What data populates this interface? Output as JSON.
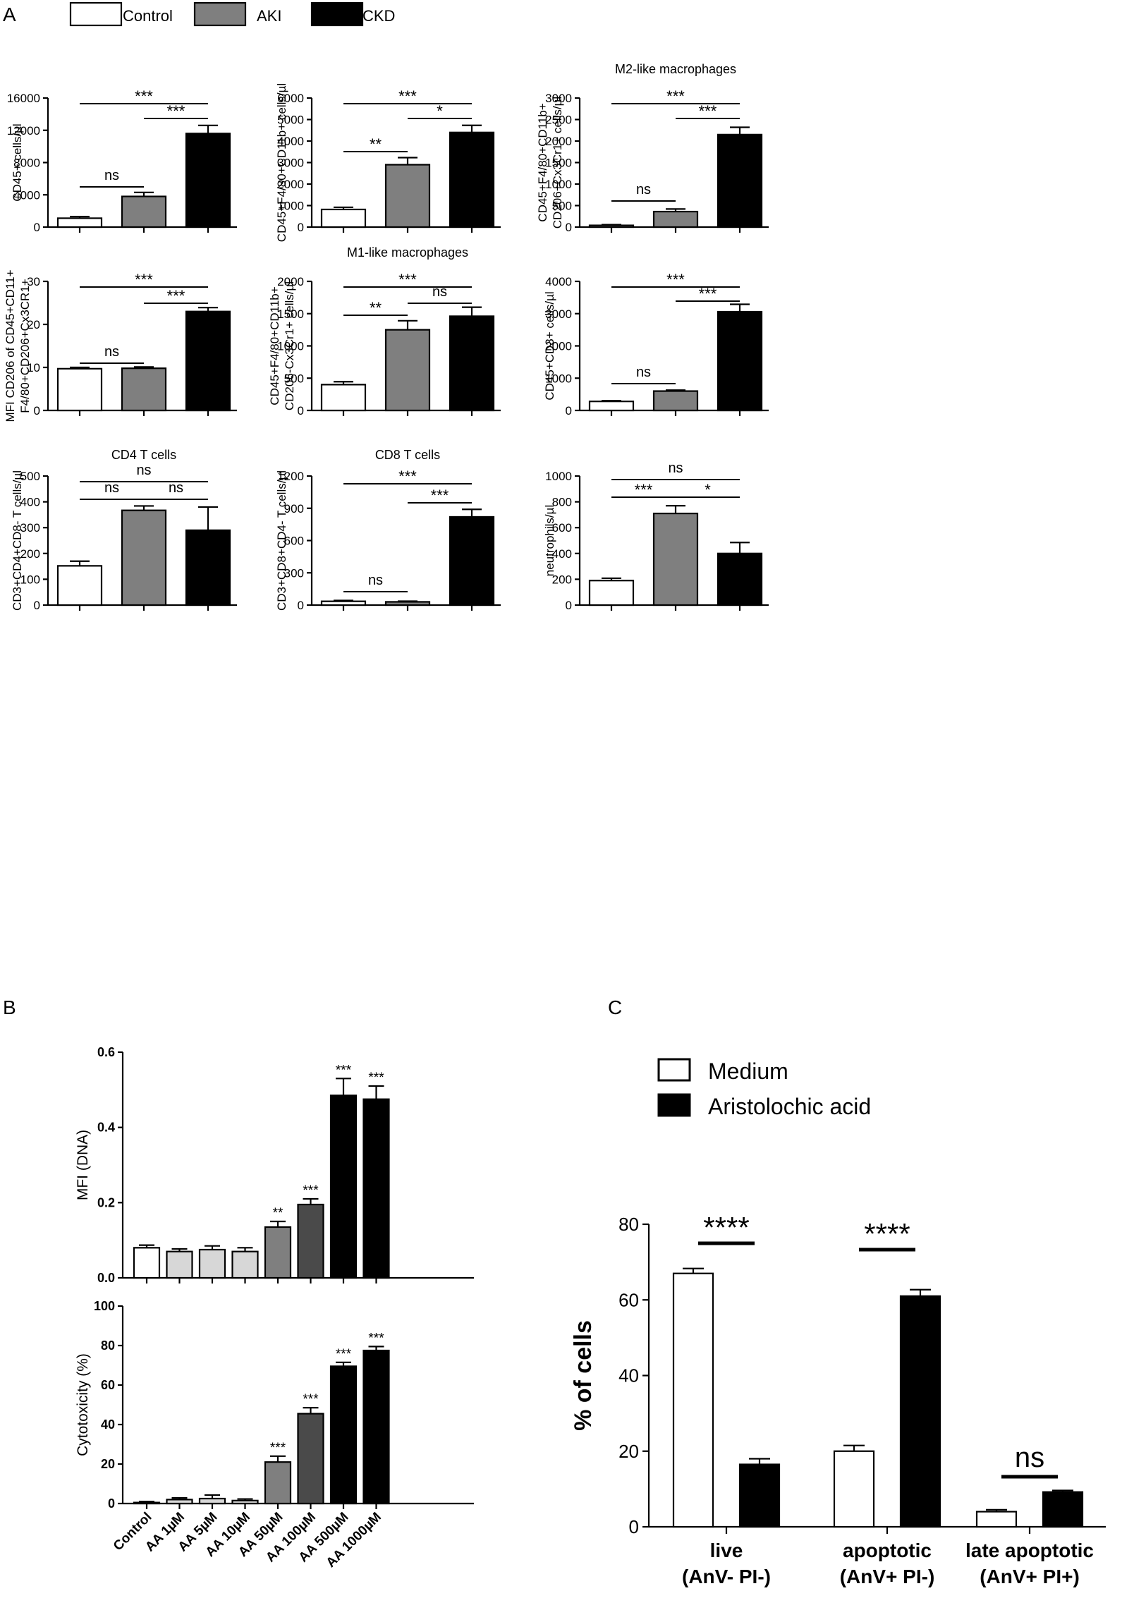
{
  "panel_labels": {
    "a": "A",
    "b": "B",
    "c": "C"
  },
  "legend_a": [
    {
      "label": "Control",
      "color": "#ffffff"
    },
    {
      "label": "AKI",
      "color": "#7f7f7f"
    },
    {
      "label": "CKD",
      "color": "#000000"
    }
  ],
  "legend_c": [
    {
      "label": "Medium",
      "color": "#ffffff"
    },
    {
      "label": "Aristolochic acid",
      "color": "#000000"
    }
  ],
  "chart_data": [
    {
      "id": "a1",
      "type": "bar",
      "title": "",
      "ylabel": "CD45+ cells/µl",
      "ylim": [
        0,
        16000
      ],
      "yticks": [
        0,
        4000,
        8000,
        12000,
        16000
      ],
      "categories": [
        "Control",
        "AKI",
        "CKD"
      ],
      "values": [
        1100,
        3800,
        11600
      ],
      "errors": [
        200,
        500,
        1000
      ],
      "significance": [
        {
          "from": 0,
          "to": 2,
          "label": "***"
        },
        {
          "from": 1,
          "to": 2,
          "label": "***"
        },
        {
          "from": 0,
          "to": 1,
          "label": "ns"
        }
      ]
    },
    {
      "id": "a2",
      "type": "bar",
      "title": "",
      "ylabel": "CD45+F4/80+CD11b+ cells/µl",
      "ylim": [
        0,
        6000
      ],
      "yticks": [
        0,
        1000,
        2000,
        3000,
        4000,
        5000,
        6000
      ],
      "categories": [
        "Control",
        "AKI",
        "CKD"
      ],
      "values": [
        820,
        2900,
        4400
      ],
      "errors": [
        100,
        330,
        330
      ],
      "significance": [
        {
          "from": 0,
          "to": 2,
          "label": "***"
        },
        {
          "from": 1,
          "to": 2,
          "label": "*"
        },
        {
          "from": 0,
          "to": 1,
          "label": "**"
        }
      ]
    },
    {
      "id": "a3",
      "type": "bar",
      "title": "M2-like macrophages",
      "ylabel": "CD45+F4/80+CD11b+ CD206+Cx3Cr1+ cells/µl",
      "ylim": [
        0,
        3000
      ],
      "yticks": [
        0,
        500,
        1000,
        1500,
        2000,
        2500,
        3000
      ],
      "categories": [
        "Control",
        "AKI",
        "CKD"
      ],
      "values": [
        40,
        360,
        2150
      ],
      "errors": [
        15,
        60,
        170
      ],
      "significance": [
        {
          "from": 0,
          "to": 2,
          "label": "***"
        },
        {
          "from": 1,
          "to": 2,
          "label": "***"
        },
        {
          "from": 0,
          "to": 1,
          "label": "ns"
        }
      ]
    },
    {
      "id": "a4",
      "type": "bar",
      "title": "",
      "ylabel": "MFI CD206 of CD45+CD11+ F4/80+CD206+Cx3CR1+",
      "ylim": [
        0,
        30
      ],
      "yticks": [
        0,
        10,
        20,
        30
      ],
      "categories": [
        "Control",
        "AKI",
        "CKD"
      ],
      "values": [
        9.7,
        9.8,
        23
      ],
      "errors": [
        0.3,
        0.3,
        0.9
      ],
      "significance": [
        {
          "from": 0,
          "to": 2,
          "label": "***"
        },
        {
          "from": 1,
          "to": 2,
          "label": "***"
        },
        {
          "from": 0,
          "to": 1,
          "label": "ns"
        }
      ]
    },
    {
      "id": "a5",
      "type": "bar",
      "title": "M1-like macrophages",
      "ylabel": "CD45+F4/80+CD11b+ CD206-Cx3Cr1+ cells/µl",
      "ylim": [
        0,
        2000
      ],
      "yticks": [
        0,
        500,
        1000,
        1500,
        2000
      ],
      "categories": [
        "Control",
        "AKI",
        "CKD"
      ],
      "values": [
        400,
        1250,
        1460
      ],
      "errors": [
        45,
        140,
        140
      ],
      "significance": [
        {
          "from": 0,
          "to": 2,
          "label": "***"
        },
        {
          "from": 1,
          "to": 2,
          "label": "ns"
        },
        {
          "from": 0,
          "to": 1,
          "label": "**"
        }
      ]
    },
    {
      "id": "a6",
      "type": "bar",
      "title": "",
      "ylabel": "CD45+CD3+ cells/µl",
      "ylim": [
        0,
        4000
      ],
      "yticks": [
        0,
        1000,
        2000,
        3000,
        4000
      ],
      "categories": [
        "Control",
        "AKI",
        "CKD"
      ],
      "values": [
        280,
        600,
        3060
      ],
      "errors": [
        20,
        30,
        230
      ],
      "significance": [
        {
          "from": 0,
          "to": 2,
          "label": "***"
        },
        {
          "from": 1,
          "to": 2,
          "label": "***"
        },
        {
          "from": 0,
          "to": 1,
          "label": "ns"
        }
      ]
    },
    {
      "id": "a7",
      "type": "bar",
      "title": "CD4 T cells",
      "ylabel": "CD3+CD4+CD8- T cells/µl",
      "ylim": [
        0,
        500
      ],
      "yticks": [
        0,
        100,
        200,
        300,
        400,
        500
      ],
      "categories": [
        "Control",
        "AKI",
        "CKD"
      ],
      "values": [
        152,
        367,
        290
      ],
      "errors": [
        18,
        17,
        90
      ],
      "significance": [
        {
          "from": 0,
          "to": 2,
          "label": "ns"
        },
        {
          "from": 0,
          "to": 1,
          "label": "ns"
        },
        {
          "from": 1,
          "to": 2,
          "label": "ns"
        }
      ]
    },
    {
      "id": "a8",
      "type": "bar",
      "title": "CD8 T cells",
      "ylabel": "CD3+CD8+CD4- T cells/µl",
      "ylim": [
        0,
        1200
      ],
      "yticks": [
        0,
        300,
        600,
        900,
        1200
      ],
      "categories": [
        "Control",
        "AKI",
        "CKD"
      ],
      "values": [
        35,
        30,
        820
      ],
      "errors": [
        8,
        6,
        70
      ],
      "significance": [
        {
          "from": 0,
          "to": 2,
          "label": "***"
        },
        {
          "from": 1,
          "to": 2,
          "label": "***"
        },
        {
          "from": 0,
          "to": 1,
          "label": "ns"
        }
      ]
    },
    {
      "id": "a9",
      "type": "bar",
      "title": "",
      "ylabel": "neutrophils/µl",
      "ylim": [
        0,
        1000
      ],
      "yticks": [
        0,
        200,
        400,
        600,
        800,
        1000
      ],
      "categories": [
        "Control",
        "AKI",
        "CKD"
      ],
      "values": [
        190,
        710,
        400
      ],
      "errors": [
        18,
        60,
        85
      ],
      "significance": [
        {
          "from": 0,
          "to": 2,
          "label": "ns"
        },
        {
          "from": 0,
          "to": 1,
          "label": "***"
        },
        {
          "from": 1,
          "to": 2,
          "label": "*"
        }
      ]
    },
    {
      "id": "b1",
      "type": "bar",
      "title": "",
      "ylabel": "MFI (DNA)",
      "ylim": [
        0,
        0.6
      ],
      "yticks": [
        0.0,
        0.2,
        0.4,
        0.6
      ],
      "ytick_labels": [
        "0.0",
        "0.2",
        "0.4",
        "0.6"
      ],
      "categories": [
        "Control",
        "AA 1µM",
        "AA 5µM",
        "AA 10µM",
        "AA 50µM",
        "AA 100µM",
        "AA 500µM",
        "AA 1000µM"
      ],
      "values": [
        0.08,
        0.07,
        0.075,
        0.07,
        0.135,
        0.195,
        0.485,
        0.475
      ],
      "errors": [
        0.007,
        0.007,
        0.01,
        0.01,
        0.015,
        0.015,
        0.045,
        0.035
      ],
      "bar_labels": [
        "",
        "",
        "",
        "",
        "**",
        "***",
        "***",
        "***"
      ]
    },
    {
      "id": "b2",
      "type": "bar",
      "title": "",
      "ylabel": "Cytotoxicity (%)",
      "ylim": [
        0,
        100
      ],
      "yticks": [
        0,
        20,
        40,
        60,
        80,
        100
      ],
      "categories": [
        "Control",
        "AA 1µM",
        "AA 5µM",
        "AA 10µM",
        "AA 50µM",
        "AA 100µM",
        "AA 500µM",
        "AA 1000µM"
      ],
      "values": [
        0.5,
        2,
        2.5,
        1.5,
        21,
        45.5,
        69.5,
        77.5
      ],
      "errors": [
        0.5,
        0.8,
        1.8,
        0.8,
        3,
        3,
        2,
        2
      ],
      "bar_labels": [
        "",
        "",
        "",
        "",
        "***",
        "***",
        "***",
        "***"
      ]
    },
    {
      "id": "c1",
      "type": "bar",
      "title": "",
      "ylabel": "% of cells",
      "ylim": [
        0,
        80
      ],
      "yticks": [
        0,
        20,
        40,
        60,
        80
      ],
      "categories": [
        [
          "live",
          "(AnV- PI-)"
        ],
        [
          "apoptotic",
          "(AnV+ PI-)"
        ],
        [
          "late apoptotic",
          "(AnV+ PI+)"
        ]
      ],
      "series": [
        {
          "name": "Medium",
          "values": [
            67,
            20,
            4
          ],
          "errors": [
            1.3,
            1.5,
            0.5
          ]
        },
        {
          "name": "Aristolochic acid",
          "values": [
            16.5,
            61,
            9.2
          ],
          "errors": [
            1.5,
            1.7,
            0.4
          ]
        }
      ],
      "significance_labels": [
        "****",
        "****",
        "ns"
      ]
    }
  ]
}
